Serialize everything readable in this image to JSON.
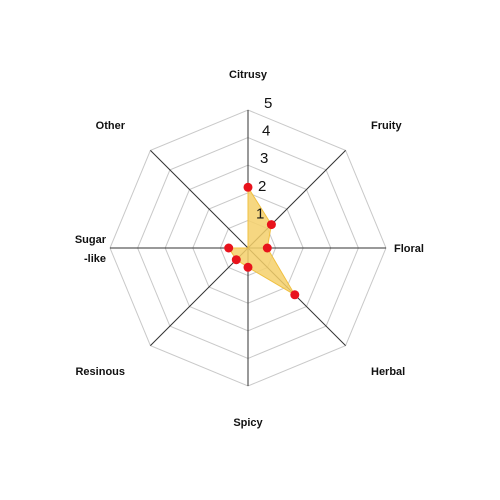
{
  "chart_data": {
    "type": "radar",
    "title": "",
    "axes": [
      "Citrusy",
      "Fruity",
      "Floral",
      "Herbal",
      "Spicy",
      "Resinous",
      "Sugar\n-like",
      "Other"
    ],
    "ticks": [
      "1",
      "2",
      "3",
      "4",
      "5"
    ],
    "range": [
      0,
      5
    ],
    "series": [
      {
        "values": [
          2.2,
          1.2,
          0.7,
          2.4,
          0.7,
          0.6,
          0.7,
          0.0
        ]
      }
    ],
    "colors": {
      "fill": "#f5d06b",
      "stroke": "#f0c040",
      "point": "#e8131c",
      "grid": "#c9c9c9"
    },
    "grid": true
  }
}
